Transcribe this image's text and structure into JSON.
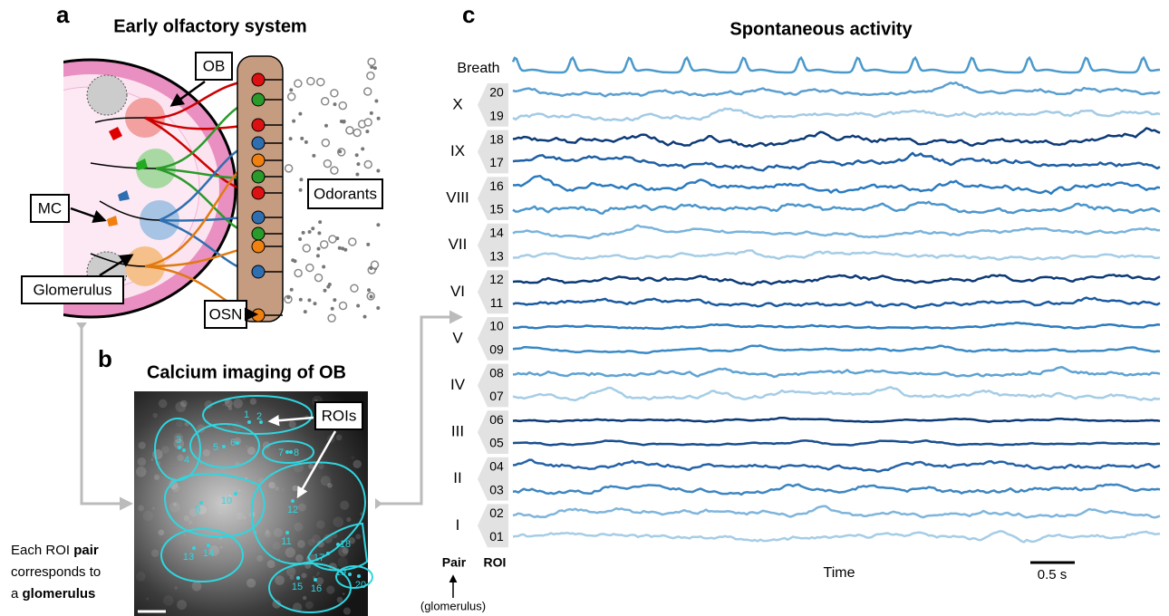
{
  "panel_a": {
    "letter": "a",
    "title": "Early olfactory system",
    "labels": {
      "ob": "OB",
      "mc": "MC",
      "glomerulus": "Glomerulus",
      "osn": "OSN",
      "odorants": "Odorants"
    }
  },
  "panel_b": {
    "letter": "b",
    "title": "Calcium imaging of OB",
    "rois_label": "ROIs",
    "roi_numbers": [
      "1",
      "2",
      "3",
      "4",
      "5",
      "6",
      "7",
      "8",
      "9",
      "10",
      "11",
      "12",
      "13",
      "14",
      "15",
      "16",
      "17",
      "18",
      "19",
      "20"
    ]
  },
  "caption": {
    "line1": "Each ROI ",
    "line1_bold": "pair",
    "line2": "corresponds to",
    "line3": "a ",
    "line3_bold": "glomerulus"
  },
  "panel_c": {
    "letter": "c",
    "title": "Spontaneous activity",
    "breath": "Breath",
    "pairs": [
      {
        "label": "X",
        "rois": [
          "20",
          "19"
        ]
      },
      {
        "label": "IX",
        "rois": [
          "18",
          "17"
        ]
      },
      {
        "label": "VIII",
        "rois": [
          "16",
          "15"
        ]
      },
      {
        "label": "VII",
        "rois": [
          "14",
          "13"
        ]
      },
      {
        "label": "VI",
        "rois": [
          "12",
          "11"
        ]
      },
      {
        "label": "V",
        "rois": [
          "10",
          "09"
        ]
      },
      {
        "label": "IV",
        "rois": [
          "08",
          "07"
        ]
      },
      {
        "label": "III",
        "rois": [
          "06",
          "05"
        ]
      },
      {
        "label": "II",
        "rois": [
          "04",
          "03"
        ]
      },
      {
        "label": "I",
        "rois": [
          "02",
          "01"
        ]
      }
    ],
    "pair_header": "Pair",
    "roi_header": "ROI",
    "glomerulus_note": "(glomerulus)",
    "x_label": "Time",
    "scale_bar": "0.5 s"
  }
}
